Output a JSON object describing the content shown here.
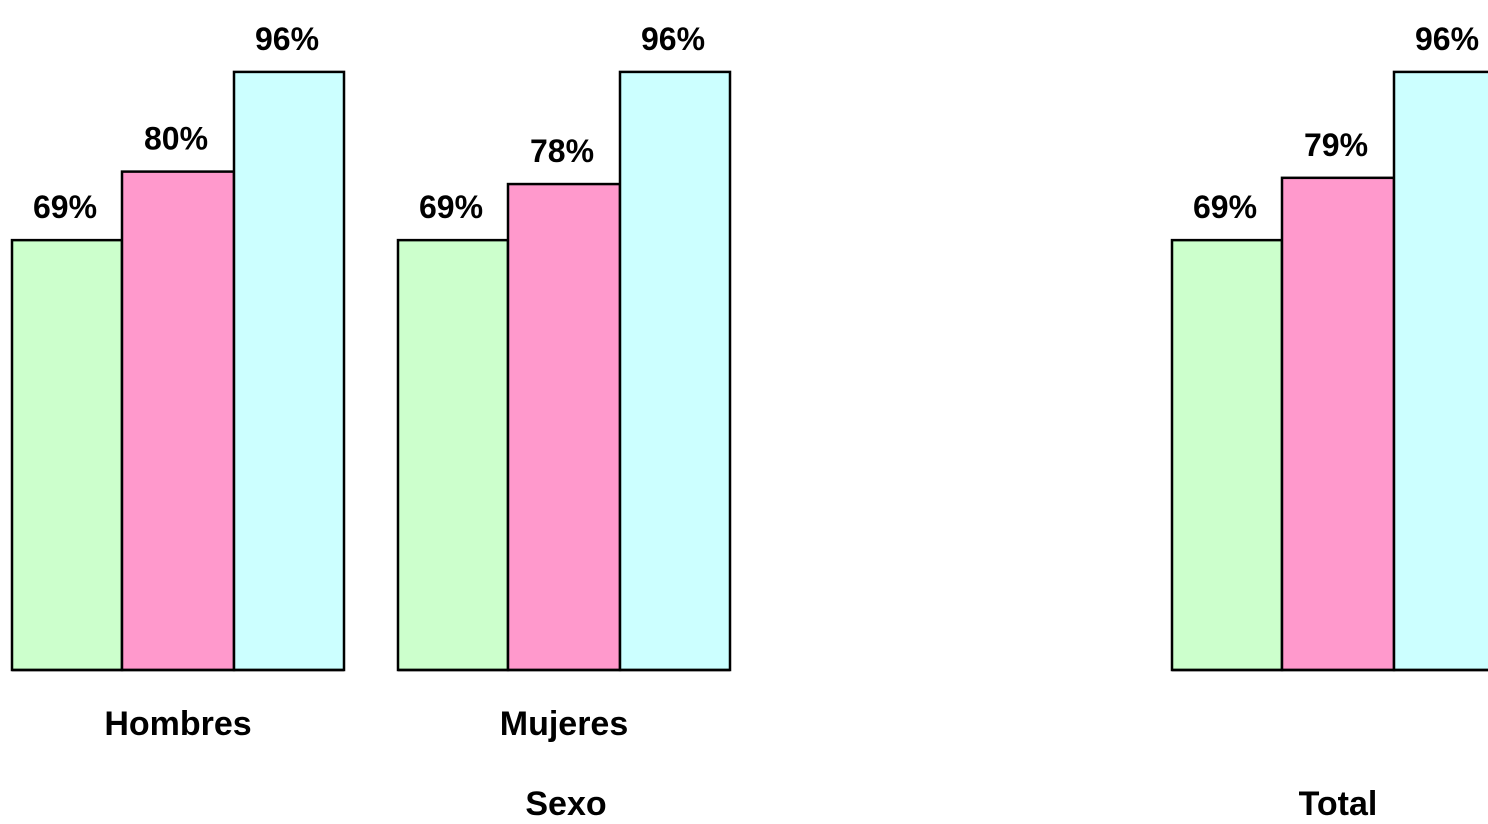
{
  "chart_data": {
    "type": "bar",
    "ylim": [
      0,
      100
    ],
    "grid": false,
    "legend": "none",
    "colors": [
      "#ccffcc",
      "#ff99cc",
      "#ccffff"
    ],
    "bar_outline": "#000000",
    "categories": [
      "Hombres",
      "Mujeres",
      ""
    ],
    "groups": [
      {
        "label": "Sexo",
        "categories": [
          "Hombres",
          "Mujeres"
        ]
      },
      {
        "label": "Total",
        "categories": [
          ""
        ]
      }
    ],
    "series": [
      {
        "values": [
          69,
          69,
          69
        ]
      },
      {
        "values": [
          80,
          78,
          79
        ]
      },
      {
        "values": [
          96,
          96,
          96
        ]
      }
    ],
    "data_labels": [
      [
        "69%",
        "80%",
        "96%"
      ],
      [
        "69%",
        "78%",
        "96%"
      ],
      [
        "69%",
        "79%",
        "96%"
      ]
    ]
  }
}
